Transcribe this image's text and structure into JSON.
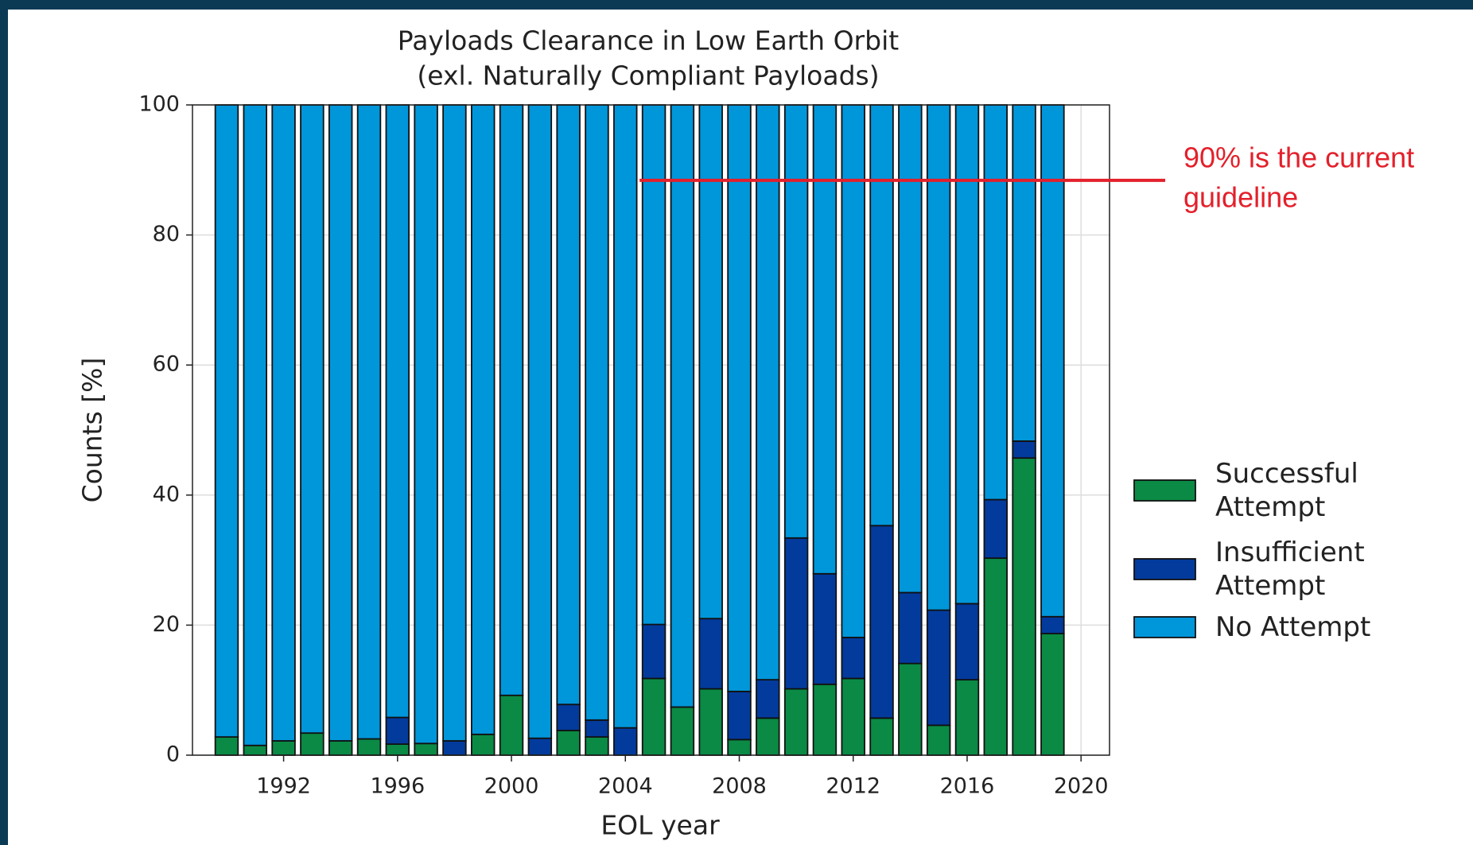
{
  "chart_data": {
    "type": "stacked_bar",
    "title": [
      "Payloads Clearance in Low Earth Orbit",
      "(exl. Naturally Compliant Payloads)"
    ],
    "x_label": "EOL year",
    "y_label": "Counts [%]",
    "x": [
      1990,
      1991,
      1992,
      1993,
      1994,
      1995,
      1996,
      1997,
      1998,
      1999,
      2000,
      2001,
      2002,
      2003,
      2004,
      2005,
      2006,
      2007,
      2008,
      2009,
      2010,
      2011,
      2012,
      2013,
      2014,
      2015,
      2016,
      2017,
      2018,
      2019
    ],
    "series": [
      {
        "name": "Successful Attempt",
        "color": "#0a8a45",
        "values": [
          2.8,
          1.5,
          2.2,
          3.4,
          2.2,
          2.5,
          1.7,
          1.8,
          0,
          3.2,
          9.2,
          0,
          3.8,
          2.8,
          0,
          11.8,
          7.4,
          10.2,
          2.4,
          5.7,
          10.2,
          10.9,
          11.8,
          5.7,
          14.1,
          4.6,
          11.6,
          30.3,
          45.7,
          18.7
        ]
      },
      {
        "name": "Insufficient Attempt",
        "color": "#033b9c",
        "values": [
          0,
          0,
          0,
          0,
          0,
          0,
          4.1,
          0,
          2.2,
          0,
          0,
          2.6,
          4.0,
          2.6,
          4.2,
          8.3,
          0,
          10.8,
          7.4,
          5.9,
          23.2,
          17,
          6.3,
          29.6,
          10.9,
          17.7,
          11.7,
          9,
          2.6,
          2.6
        ]
      },
      {
        "name": "No Attempt",
        "color": "#0096da",
        "values": [
          97.2,
          98.5,
          97.8,
          96.6,
          97.8,
          97.5,
          94.2,
          98.2,
          97.8,
          96.8,
          90.8,
          97.4,
          92.2,
          94.6,
          95.8,
          79.9,
          92.6,
          79,
          90.2,
          88.4,
          66.6,
          72.1,
          81.9,
          64.7,
          75,
          77.7,
          76.7,
          60.7,
          51.7,
          78.7
        ]
      }
    ],
    "xlim": [
      1988.8,
      2021
    ],
    "xticks": [
      1992,
      1996,
      2000,
      2004,
      2008,
      2012,
      2016,
      2020
    ],
    "ylim": [
      0,
      100
    ],
    "yticks": [
      0,
      20,
      40,
      60,
      80,
      100
    ],
    "grid": true,
    "legend": "right",
    "annotation": {
      "text": [
        "90% is the current",
        "guideline"
      ],
      "y": 88.4,
      "x_start": 2004.5,
      "color": "#e3202b"
    }
  }
}
